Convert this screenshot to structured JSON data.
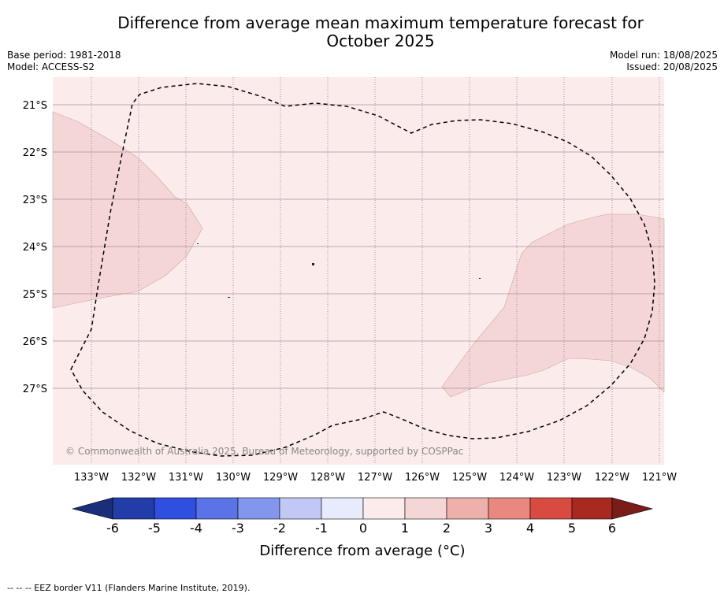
{
  "title_line1": "Difference from average mean maximum temperature forecast for",
  "title_line2": "October 2025",
  "base_period": "Base period: 1981-2018",
  "model": "Model: ACCESS-S2",
  "model_run": "Model run: 18/08/2025",
  "issued": "Issued: 20/08/2025",
  "copyright": "© Commonwealth of Australia 2025, Bureau of Meteorology, supported by COSPPac",
  "footer": "--  --  -- EEZ border V11 (Flanders Marine Institute, 2019).",
  "colors": {
    "background_anomaly": "#fbebea",
    "positive_1_2": "#f5d6d6",
    "eez_line": "#000000",
    "grid": "#999999"
  },
  "map": {
    "lon_labels": [
      "133°W",
      "132°W",
      "131°W",
      "130°W",
      "129°W",
      "128°W",
      "127°W",
      "126°W",
      "125°W",
      "124°W",
      "123°W",
      "122°W",
      "121°W"
    ],
    "lat_labels": [
      "21°S",
      "22°S",
      "23°S",
      "24°S",
      "25°S",
      "26°S",
      "27°S"
    ]
  },
  "colorbar": {
    "label": "Difference from average (°C)",
    "ticks": [
      "-6",
      "-5",
      "-4",
      "-3",
      "-2",
      "-1",
      "0",
      "1",
      "2",
      "3",
      "4",
      "5",
      "6"
    ],
    "colors": [
      "#223da8",
      "#2e4fe0",
      "#5a73e6",
      "#8396ee",
      "#c2c8f5",
      "#e8ebfb",
      "#fbebea",
      "#f5d6d6",
      "#eeb0ab",
      "#e8887e",
      "#d94a40",
      "#a8291f"
    ],
    "under_color": "#1b2e7a",
    "over_color": "#7a1c17"
  }
}
